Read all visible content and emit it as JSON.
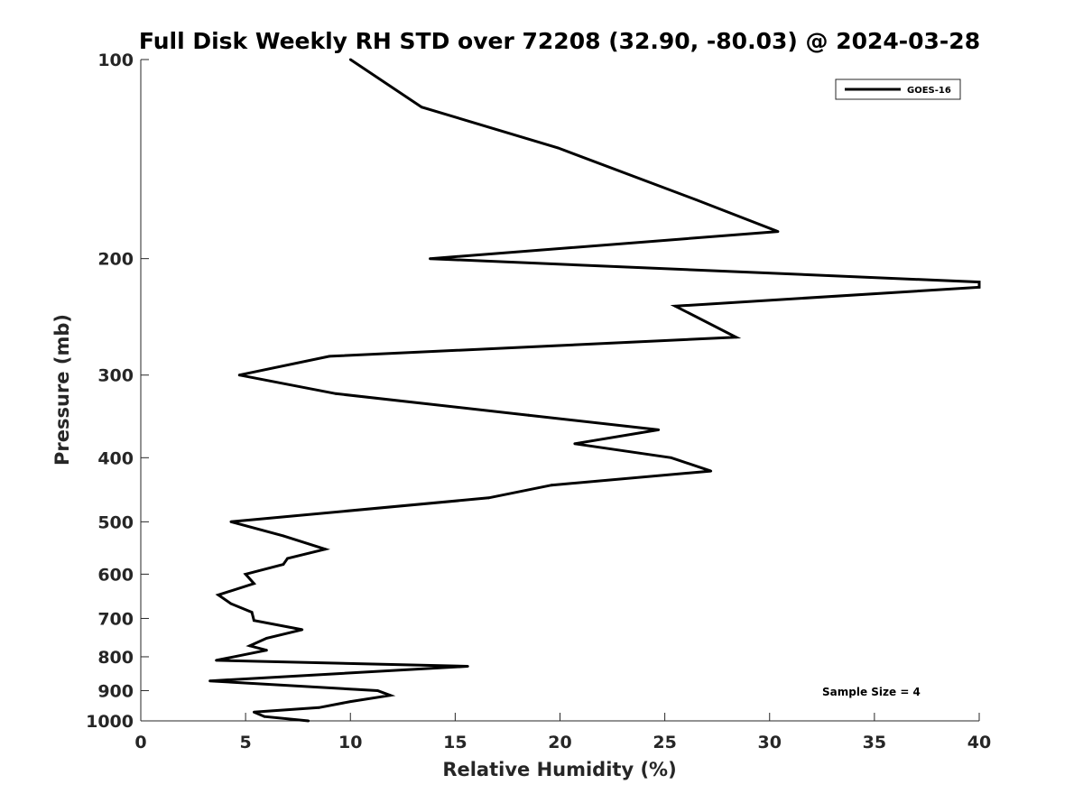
{
  "chart_data": {
    "type": "line",
    "title": "Full Disk Weekly RH STD over 72208 (32.90, -80.03) @ 2024-03-28",
    "xlabel": "Relative Humidity (%)",
    "ylabel": "Pressure (mb)",
    "xlim": [
      0,
      40
    ],
    "ylim": [
      100,
      1000
    ],
    "y_scale": "log",
    "y_direction": "reversed",
    "x_ticks": [
      0,
      5,
      10,
      15,
      20,
      25,
      30,
      35,
      40
    ],
    "y_ticks": [
      100,
      200,
      300,
      400,
      500,
      600,
      700,
      800,
      900,
      1000
    ],
    "grid": false,
    "legend_position": "top-right",
    "series": [
      {
        "name": "GOES-16",
        "color": "#000000",
        "points": [
          [
            10.0,
            100
          ],
          [
            13.4,
            118
          ],
          [
            19.9,
            136
          ],
          [
            26.5,
            163
          ],
          [
            30.4,
            182
          ],
          [
            13.8,
            200
          ],
          [
            40.0,
            217
          ],
          [
            40.0,
            221
          ],
          [
            25.5,
            236
          ],
          [
            28.4,
            263
          ],
          [
            9.0,
            281
          ],
          [
            4.7,
            300
          ],
          [
            9.3,
            320
          ],
          [
            18.5,
            345
          ],
          [
            24.7,
            363
          ],
          [
            20.7,
            381
          ],
          [
            25.3,
            400
          ],
          [
            27.2,
            419
          ],
          [
            19.6,
            440
          ],
          [
            16.6,
            460
          ],
          [
            4.3,
            500
          ],
          [
            6.8,
            525
          ],
          [
            8.8,
            550
          ],
          [
            7.0,
            568
          ],
          [
            6.8,
            580
          ],
          [
            5.0,
            600
          ],
          [
            5.4,
            620
          ],
          [
            3.7,
            645
          ],
          [
            4.3,
            665
          ],
          [
            5.3,
            685
          ],
          [
            5.4,
            705
          ],
          [
            7.7,
            728
          ],
          [
            6.0,
            750
          ],
          [
            5.2,
            770
          ],
          [
            6.0,
            782
          ],
          [
            3.6,
            810
          ],
          [
            15.6,
            827
          ],
          [
            3.3,
            870
          ],
          [
            11.3,
            900
          ],
          [
            11.9,
            915
          ],
          [
            10.0,
            935
          ],
          [
            8.5,
            955
          ],
          [
            5.4,
            970
          ],
          [
            5.9,
            985
          ],
          [
            8.0,
            1000
          ]
        ]
      }
    ],
    "annotation": "Sample Size = 4"
  }
}
